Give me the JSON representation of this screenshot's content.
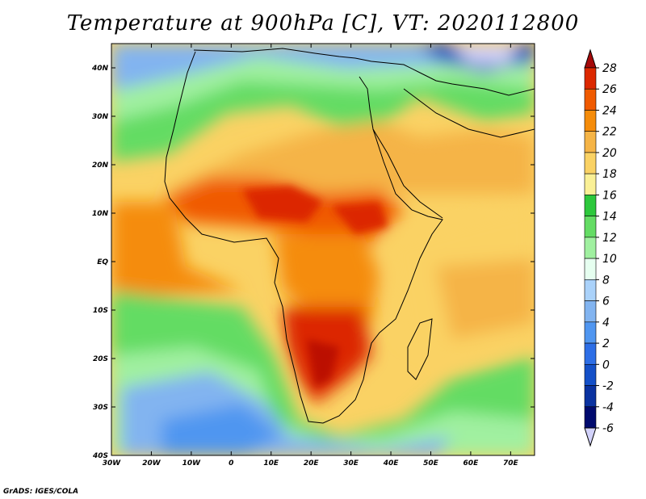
{
  "title": "Temperature at 900hPa [C], VT: 2020112800",
  "credit": "GrADS: IGES/COLA",
  "map": {
    "projection": "lat-lon",
    "lon_range": [
      -30,
      76
    ],
    "lat_range": [
      -40,
      45
    ],
    "lon_ticks": [
      "30W",
      "20W",
      "10W",
      "0",
      "10E",
      "20E",
      "30E",
      "40E",
      "50E",
      "60E",
      "70E"
    ],
    "lat_ticks": [
      "40N",
      "30N",
      "20N",
      "10N",
      "EQ",
      "10S",
      "20S",
      "30S",
      "40S"
    ],
    "variable": "Temperature",
    "level": "900hPa",
    "units": "C",
    "valid_time": "2020112800"
  },
  "colorbar": {
    "labels": [
      "28",
      "26",
      "24",
      "22",
      "20",
      "18",
      "16",
      "14",
      "12",
      "10",
      "8",
      "6",
      "4",
      "2",
      "0",
      "-2",
      "-4",
      "-6"
    ],
    "colors": [
      "#a50a0a",
      "#dc2800",
      "#f05a00",
      "#f58c0a",
      "#f5b446",
      "#fad264",
      "#faf096",
      "#2dc83c",
      "#64dc64",
      "#a0f0a0",
      "#e6fff0",
      "#aad2fa",
      "#82b4f0",
      "#5096f0",
      "#2d6ee6",
      "#1450c8",
      "#0a32a0",
      "#000a6e",
      "#d2d2fa"
    ]
  }
}
